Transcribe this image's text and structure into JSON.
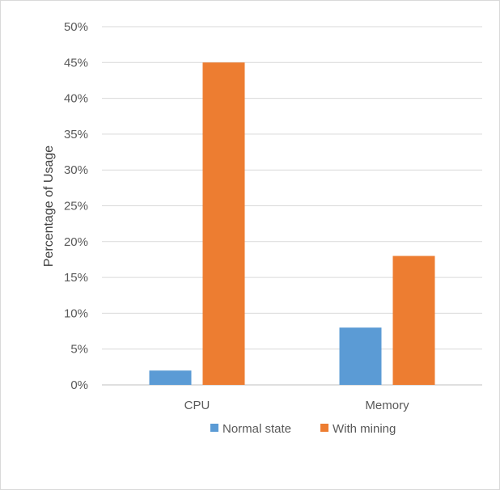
{
  "chart_data": {
    "type": "bar",
    "title": "",
    "xlabel": "",
    "ylabel": "Percentage of Usage",
    "categories": [
      "CPU",
      "Memory"
    ],
    "series": [
      {
        "name": "Normal state",
        "values": [
          2,
          8
        ],
        "color": "#5b9bd5"
      },
      {
        "name": "With mining",
        "values": [
          45,
          18
        ],
        "color": "#ed7d31"
      }
    ],
    "ylim": [
      0,
      50
    ],
    "y_ticks": [
      "0%",
      "5%",
      "10%",
      "15%",
      "20%",
      "25%",
      "30%",
      "35%",
      "40%",
      "45%",
      "50%"
    ],
    "grid": true,
    "legend_position": "bottom"
  }
}
